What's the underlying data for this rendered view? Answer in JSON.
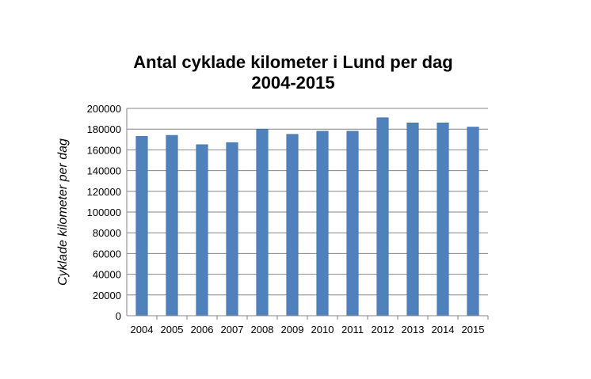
{
  "chart_data": {
    "type": "bar",
    "title_lines": [
      "Antal cyklade kilometer i Lund per dag",
      "2004-2015"
    ],
    "xlabel": "",
    "ylabel": "Cyklade kilometer per dag",
    "categories": [
      "2004",
      "2005",
      "2006",
      "2007",
      "2008",
      "2009",
      "2010",
      "2011",
      "2012",
      "2013",
      "2014",
      "2015"
    ],
    "values": [
      173000,
      174000,
      165000,
      167000,
      180000,
      175000,
      178000,
      178000,
      191000,
      186000,
      186000,
      182000
    ],
    "ylim": [
      0,
      200000
    ],
    "yticks": [
      "0",
      "20000",
      "40000",
      "60000",
      "80000",
      "100000",
      "120000",
      "140000",
      "160000",
      "180000",
      "200000"
    ],
    "grid": true,
    "legend": "none",
    "colors": {
      "bar": "#4f81bd",
      "bar_edge": "#3a6aa3",
      "grid": "#868686",
      "axis": "#868686"
    }
  }
}
